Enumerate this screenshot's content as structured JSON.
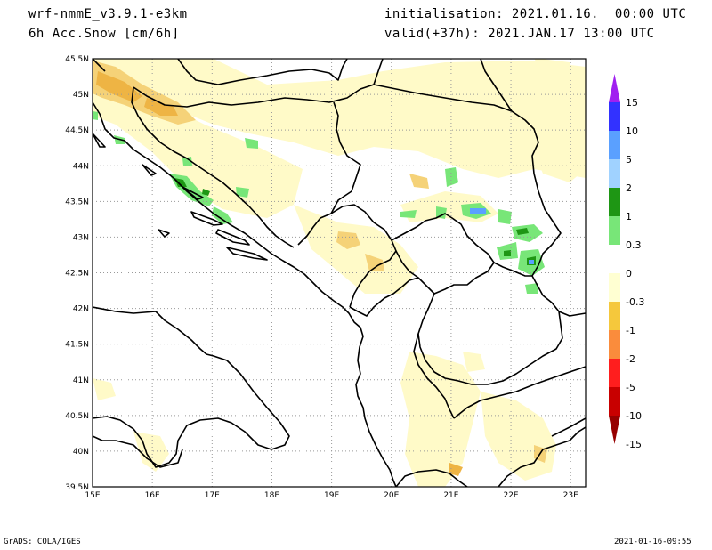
{
  "header": {
    "model": "wrf-nmmE_v3.9.1-e3km",
    "field": "6h Acc.Snow [cm/6h]",
    "init": "initialisation: 2021.01.16.  00:00 UTC",
    "valid": "valid(+37h): 2021.JAN.17 13:00 UTC"
  },
  "footer": {
    "left": "GrADS: COLA/IGES",
    "right": "2021-01-16-09:55"
  },
  "map": {
    "lon_labels": [
      "15E",
      "16E",
      "17E",
      "18E",
      "19E",
      "20E",
      "21E",
      "22E",
      "23E"
    ],
    "lat_labels": [
      "45.5N",
      "45N",
      "44.5N",
      "44N",
      "43.5N",
      "43N",
      "42.5N",
      "42N",
      "41.5N",
      "41N",
      "40.5N",
      "40N",
      "39.5N"
    ],
    "lon_range": [
      15,
      23.25
    ],
    "lat_range": [
      39.5,
      45.5
    ],
    "grid": true
  },
  "colorbar": {
    "labels": [
      "15",
      "10",
      "5",
      "2",
      "1",
      "0.3",
      "0",
      "-0.3",
      "-1",
      "-2",
      "-5",
      "-10",
      "-15"
    ],
    "colors": [
      "#a020f0",
      "#3232ff",
      "#5aa0ff",
      "#a0d2ff",
      "#1e9614",
      "#78e678",
      "#ffffff",
      "#ffffd2",
      "#f5c83c",
      "#fa8c3c",
      "#ff1e1e",
      "#c80000",
      "#960000"
    ]
  },
  "fill_colors": {
    "light_yellow": "#fffac8",
    "yellow": "#f5d278",
    "orange": "#eeb444",
    "light_green": "#78e678",
    "green": "#1e9614",
    "blue": "#5aa0ff"
  }
}
